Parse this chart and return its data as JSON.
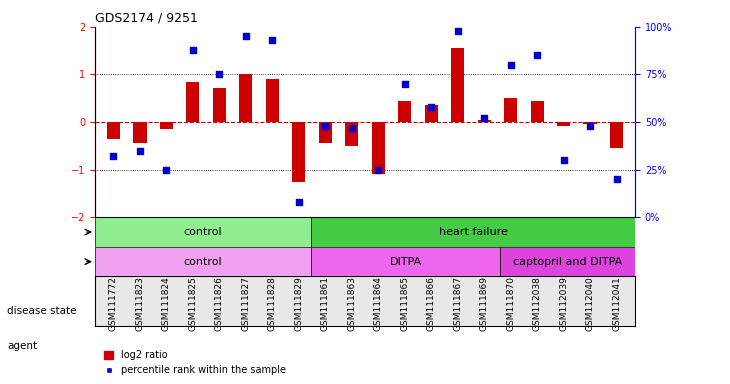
{
  "title": "GDS2174 / 9251",
  "samples": [
    "GSM111772",
    "GSM111823",
    "GSM111824",
    "GSM111825",
    "GSM111826",
    "GSM111827",
    "GSM111828",
    "GSM111829",
    "GSM111861",
    "GSM111863",
    "GSM111864",
    "GSM111865",
    "GSM111866",
    "GSM111867",
    "GSM111869",
    "GSM111870",
    "GSM112038",
    "GSM112039",
    "GSM112040",
    "GSM112041"
  ],
  "log2_ratio": [
    -0.35,
    -0.45,
    -0.15,
    0.85,
    0.72,
    1.0,
    0.9,
    -1.25,
    -0.45,
    -0.5,
    -1.1,
    0.45,
    0.35,
    1.55,
    0.05,
    0.5,
    0.45,
    -0.08,
    -0.05,
    -0.55
  ],
  "percentile": [
    32,
    35,
    25,
    88,
    75,
    95,
    93,
    8,
    48,
    47,
    25,
    70,
    58,
    98,
    52,
    80,
    85,
    30,
    48,
    20
  ],
  "disease_state": [
    {
      "label": "control",
      "start": 0,
      "end": 8,
      "color": "#90ee90"
    },
    {
      "label": "heart failure",
      "start": 8,
      "end": 20,
      "color": "#44cc44"
    }
  ],
  "agent": [
    {
      "label": "control",
      "start": 0,
      "end": 8,
      "color": "#f0a0f0"
    },
    {
      "label": "DITPA",
      "start": 8,
      "end": 15,
      "color": "#ee66ee"
    },
    {
      "label": "captopril and DITPA",
      "start": 15,
      "end": 20,
      "color": "#dd44dd"
    }
  ],
  "bar_color": "#cc0000",
  "dot_color": "#0000cc",
  "ylim_left": [
    -2,
    2
  ],
  "ylim_right": [
    0,
    100
  ],
  "y_ticks_left": [
    -2,
    -1,
    0,
    1,
    2
  ],
  "y_ticks_right": [
    0,
    25,
    50,
    75,
    100
  ],
  "y_tick_labels_right": [
    "0%",
    "25%",
    "50%",
    "75%",
    "100%"
  ],
  "hline_color": "#cc0000",
  "dotted_color": "black",
  "background_color": "white",
  "bar_width": 0.5
}
